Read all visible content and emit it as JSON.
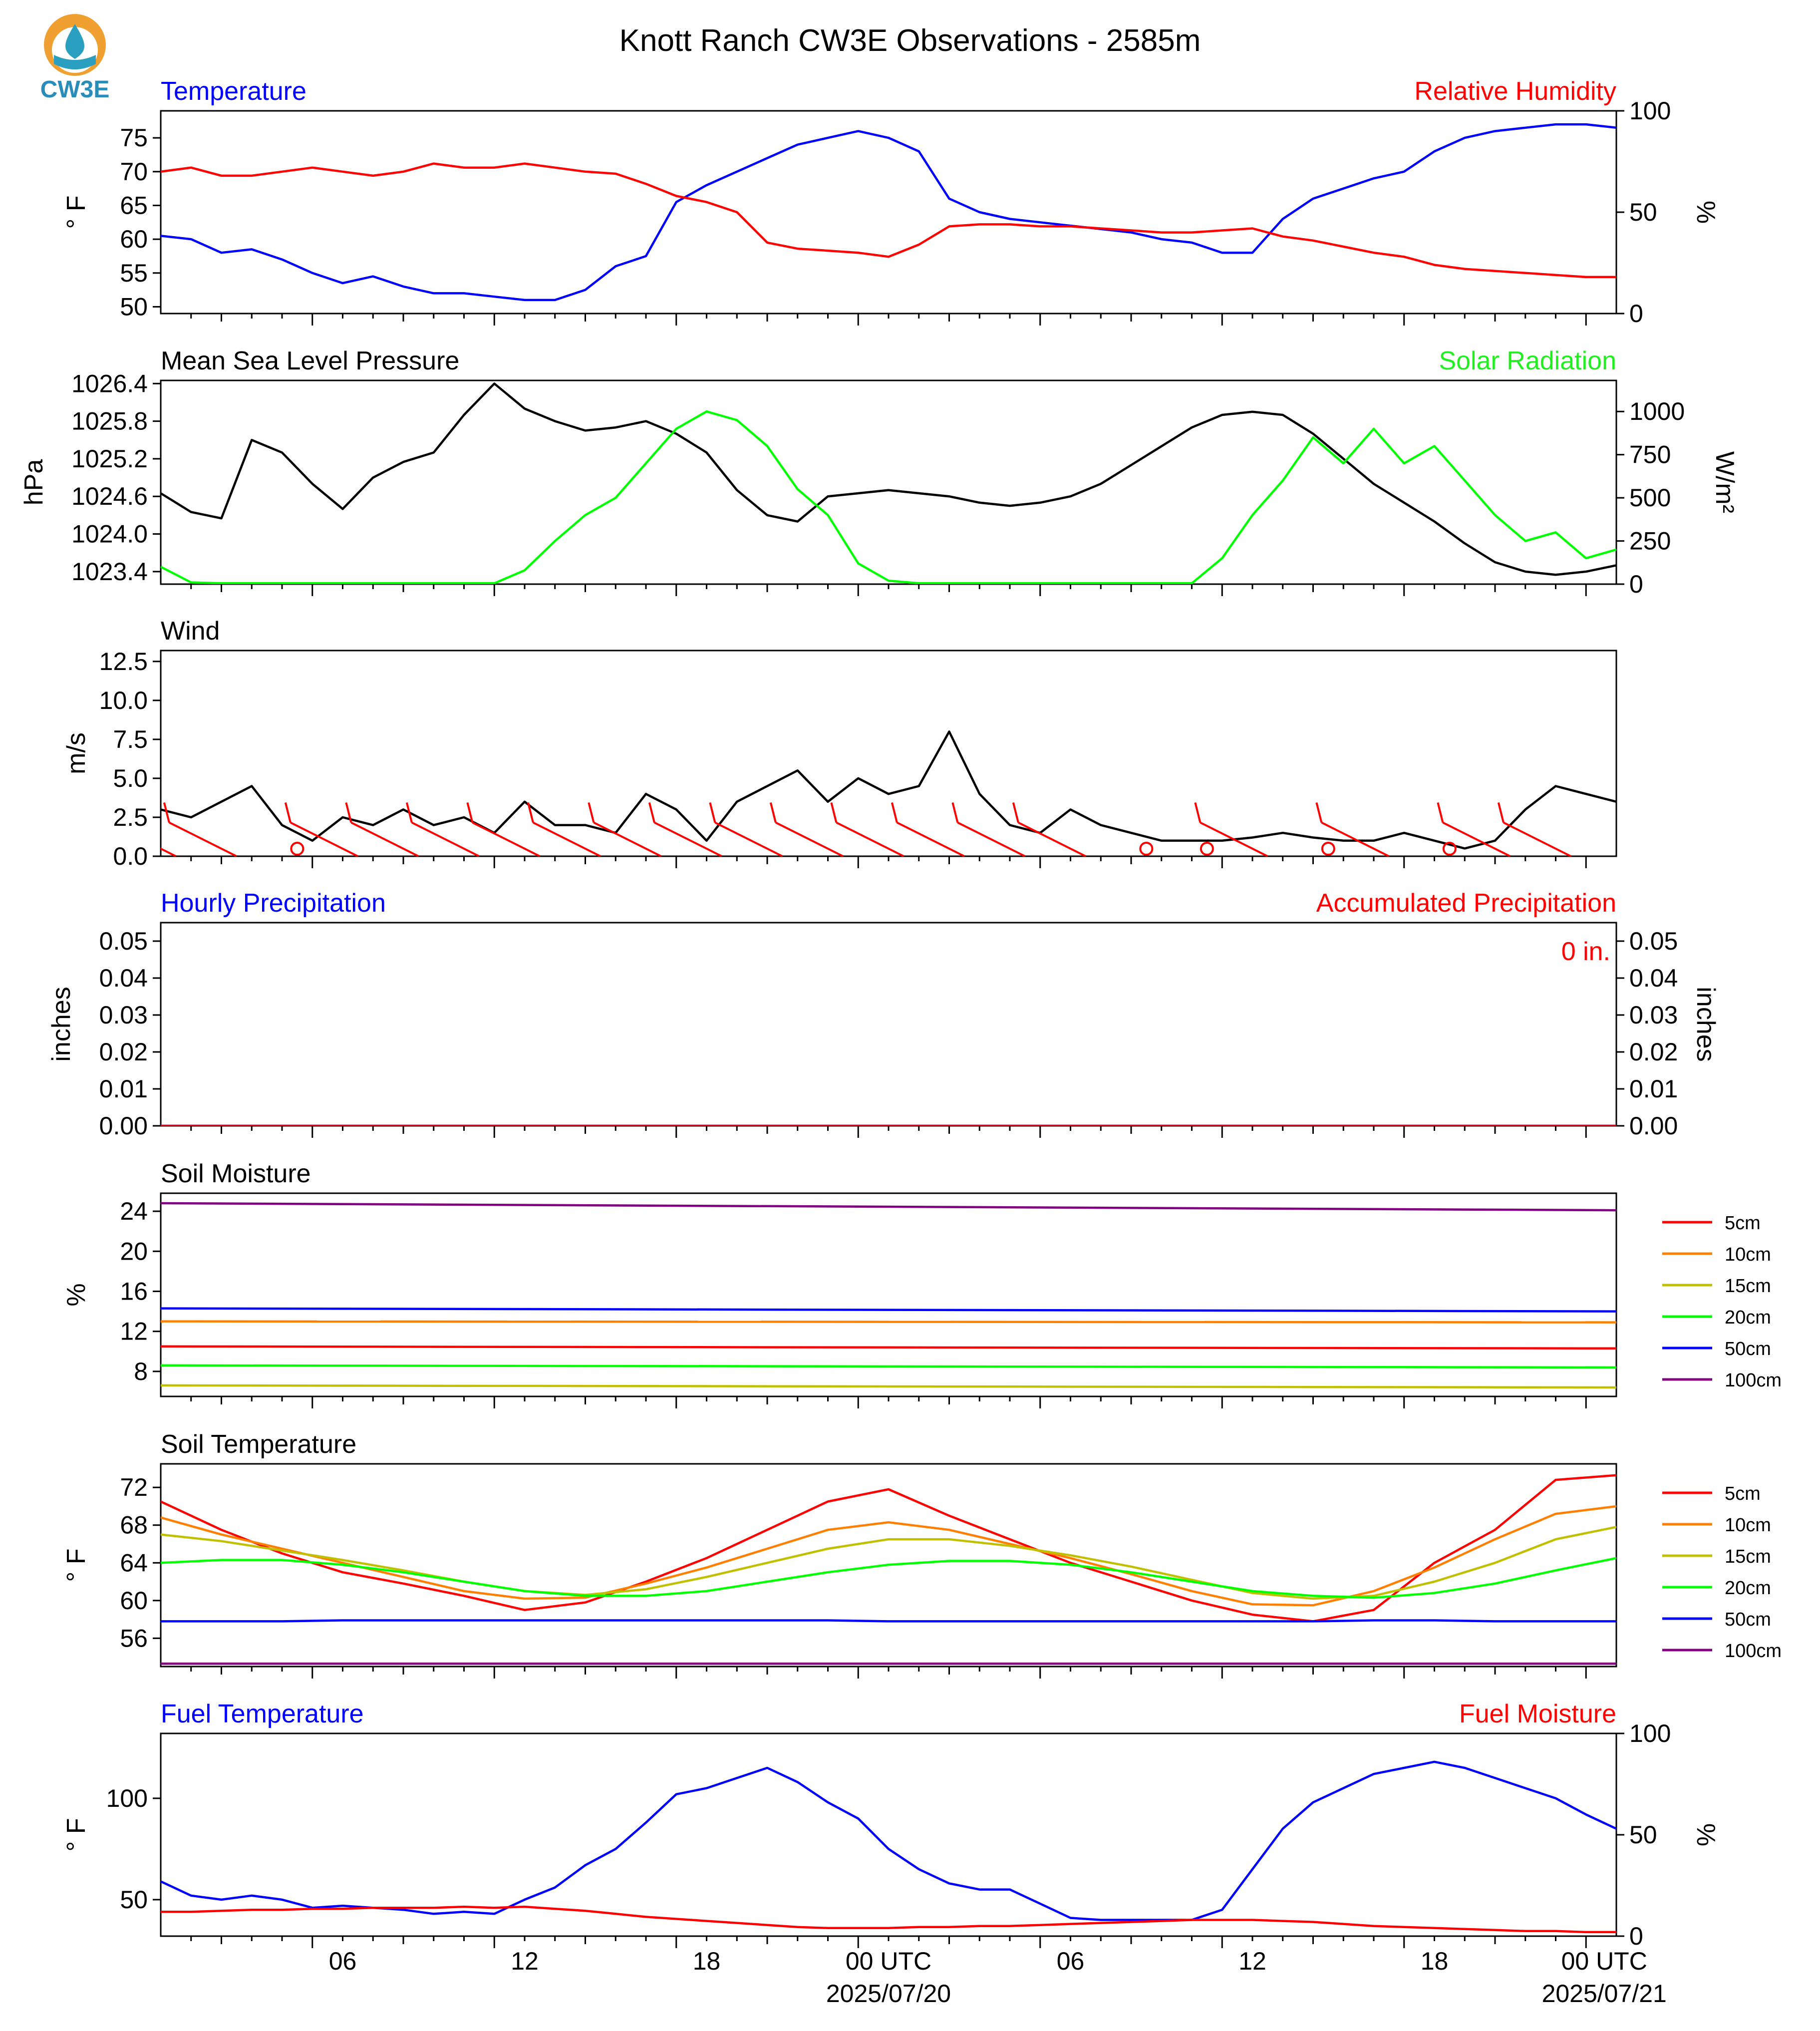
{
  "logo": {
    "text": "CW3E",
    "colors": {
      "orange": "#f0a030",
      "teal": "#2a9fc0",
      "text": "#2a8cb8"
    }
  },
  "title": "Knott Ranch CW3E Observations - 2585m",
  "x_axis": {
    "hour_ticks": [
      "06",
      "12",
      "18",
      "00 UTC",
      "06",
      "12",
      "18",
      "00 UTC"
    ],
    "date_labels": [
      "2025/07/20",
      "2025/07/21"
    ]
  },
  "chart_data": [
    {
      "id": "temp_rh",
      "type": "line",
      "title_left": "Temperature",
      "title_right": "Relative Humidity",
      "ylabel": "° F",
      "ylabel_right": "%",
      "ylim": [
        49,
        79
      ],
      "ylim_right": [
        0,
        100
      ],
      "yticks": [
        "50",
        "55",
        "60",
        "65",
        "70",
        "75"
      ],
      "yticks_right": [
        "0",
        "50",
        "100"
      ],
      "x_hours": [
        -5,
        -4,
        -3,
        -2,
        -1,
        0,
        1,
        2,
        3,
        4,
        5,
        6,
        7,
        8,
        9,
        10,
        11,
        12,
        13,
        14,
        15,
        16,
        17,
        18,
        19,
        20,
        21,
        22,
        23,
        24,
        25,
        26,
        27,
        28,
        29,
        30,
        31,
        32,
        33,
        34,
        35,
        36,
        37,
        38,
        39,
        40,
        41,
        42,
        43
      ],
      "series": [
        {
          "name": "Temperature",
          "color": "#0000ff",
          "axis": "left",
          "values": [
            60.5,
            60,
            58,
            58.5,
            57,
            55,
            53.5,
            54.5,
            53,
            52,
            52,
            51.5,
            51,
            51,
            52.5,
            56,
            57.5,
            65.5,
            68,
            70,
            72,
            74,
            75,
            76,
            75,
            73,
            66,
            64,
            63,
            62.5,
            62,
            61.5,
            61,
            60,
            59.5,
            58,
            58,
            63,
            66,
            67.5,
            69,
            70,
            73,
            75,
            76,
            76.5,
            77,
            77,
            76.5
          ]
        },
        {
          "name": "Relative Humidity",
          "color": "#ff0000",
          "axis": "right",
          "values": [
            70,
            72,
            68,
            68,
            70,
            72,
            70,
            68,
            70,
            74,
            72,
            72,
            74,
            72,
            70,
            69,
            64,
            58,
            55,
            50,
            35,
            32,
            31,
            30,
            28,
            34,
            43,
            44,
            44,
            43,
            43,
            42,
            41,
            40,
            40,
            41,
            42,
            38,
            36,
            33,
            30,
            28,
            24,
            22,
            21,
            20,
            19,
            18,
            18
          ]
        }
      ]
    },
    {
      "id": "pressure_solar",
      "type": "line",
      "title_left": "Mean Sea Level Pressure",
      "title_right": "Solar Radiation",
      "ylabel": "hPa",
      "ylabel_right": "W/m²",
      "ylim": [
        1023.2,
        1026.45
      ],
      "ylim_right": [
        0,
        1180
      ],
      "yticks": [
        "1023.4",
        "1024.0",
        "1024.6",
        "1025.2",
        "1025.8",
        "1026.4"
      ],
      "yticks_right": [
        "0",
        "250",
        "500",
        "750",
        "1000"
      ],
      "x_hours": [
        -5,
        -4,
        -3,
        -2,
        -1,
        0,
        1,
        2,
        3,
        4,
        5,
        6,
        7,
        8,
        9,
        10,
        11,
        12,
        13,
        14,
        15,
        16,
        17,
        18,
        19,
        20,
        21,
        22,
        23,
        24,
        25,
        26,
        27,
        28,
        29,
        30,
        31,
        32,
        33,
        34,
        35,
        36,
        37,
        38,
        39,
        40,
        41,
        42,
        43
      ],
      "series": [
        {
          "name": "Mean Sea Level Pressure",
          "color": "#000000",
          "axis": "left",
          "values": [
            1024.65,
            1024.35,
            1024.25,
            1025.5,
            1025.3,
            1024.8,
            1024.4,
            1024.9,
            1025.15,
            1025.3,
            1025.9,
            1026.4,
            1026.0,
            1025.8,
            1025.65,
            1025.7,
            1025.8,
            1025.6,
            1025.3,
            1024.7,
            1024.3,
            1024.2,
            1024.6,
            1024.65,
            1024.7,
            1024.65,
            1024.6,
            1024.5,
            1024.45,
            1024.5,
            1024.6,
            1024.8,
            1025.1,
            1025.4,
            1025.7,
            1025.9,
            1025.95,
            1025.9,
            1025.6,
            1025.2,
            1024.8,
            1024.5,
            1024.2,
            1023.85,
            1023.55,
            1023.4,
            1023.35,
            1023.4,
            1023.5
          ]
        },
        {
          "name": "Solar Radiation",
          "color": "#00ff00",
          "axis": "right",
          "values": [
            100,
            10,
            5,
            5,
            5,
            5,
            5,
            5,
            5,
            5,
            5,
            5,
            80,
            250,
            400,
            500,
            700,
            900,
            1000,
            950,
            800,
            550,
            400,
            120,
            20,
            5,
            5,
            5,
            5,
            5,
            5,
            5,
            5,
            5,
            5,
            150,
            400,
            600,
            850,
            700,
            900,
            700,
            800,
            600,
            400,
            250,
            300,
            150,
            200
          ]
        }
      ]
    },
    {
      "id": "wind",
      "type": "line",
      "title_left": "Wind",
      "ylabel": "m/s",
      "ylim": [
        0,
        13.2
      ],
      "yticks": [
        "0.0",
        "2.5",
        "5.0",
        "7.5",
        "10.0",
        "12.5"
      ],
      "x_hours": [
        -5,
        -4,
        -3,
        -2,
        -1,
        0,
        1,
        2,
        3,
        4,
        5,
        6,
        7,
        8,
        9,
        10,
        11,
        12,
        13,
        14,
        15,
        16,
        17,
        18,
        19,
        20,
        21,
        22,
        23,
        24,
        25,
        26,
        27,
        28,
        29,
        30,
        31,
        32,
        33,
        34,
        35,
        36,
        37,
        38,
        39,
        40,
        41,
        42,
        43
      ],
      "series": [
        {
          "name": "Wind speed",
          "color": "#000000",
          "values": [
            3,
            2.5,
            3.5,
            4.5,
            2,
            1,
            2.5,
            2,
            3,
            2,
            2.5,
            1.5,
            3.5,
            2,
            2,
            1.5,
            4,
            3,
            1,
            3.5,
            4.5,
            5.5,
            3.5,
            5,
            4,
            4.5,
            8,
            4,
            2,
            1.5,
            3,
            2,
            1.5,
            1,
            1,
            1,
            1.2,
            1.5,
            1.2,
            1,
            1,
            1.5,
            1,
            0.5,
            1,
            3,
            4.5,
            4,
            3.5
          ]
        }
      ],
      "barbs": {
        "color": "#ff0000",
        "description": "wind barbs along the bottom of the panel"
      }
    },
    {
      "id": "precip",
      "type": "line",
      "title_left": "Hourly Precipitation",
      "title_right": "Accumulated Precipitation",
      "ylabel": "inches",
      "ylabel_right": "inches",
      "ylim": [
        0,
        0.055
      ],
      "ylim_right": [
        0,
        0.055
      ],
      "yticks": [
        "0.00",
        "0.01",
        "0.02",
        "0.03",
        "0.04",
        "0.05"
      ],
      "yticks_right": [
        "0.00",
        "0.01",
        "0.02",
        "0.03",
        "0.04",
        "0.05"
      ],
      "annotation": "0 in.",
      "series": [
        {
          "name": "Hourly Precipitation",
          "color": "#0000ff",
          "values": [
            0,
            0
          ]
        },
        {
          "name": "Accumulated Precipitation",
          "color": "#ff0000",
          "values": [
            0,
            0
          ]
        }
      ]
    },
    {
      "id": "soil_moisture",
      "type": "line",
      "title_left": "Soil Moisture",
      "ylabel": "%",
      "ylim": [
        5.5,
        25.8
      ],
      "yticks": [
        "8",
        "12",
        "16",
        "20",
        "24"
      ],
      "x_hours": [
        -5,
        43
      ],
      "legend": [
        "5cm",
        "10cm",
        "15cm",
        "20cm",
        "50cm",
        "100cm"
      ],
      "series": [
        {
          "name": "5cm",
          "color": "#ff0000",
          "values": [
            10.5,
            10.3
          ]
        },
        {
          "name": "10cm",
          "color": "#ff8000",
          "values": [
            13.0,
            12.9
          ]
        },
        {
          "name": "15cm",
          "color": "#c0c000",
          "values": [
            6.6,
            6.4
          ]
        },
        {
          "name": "20cm",
          "color": "#00ff00",
          "values": [
            8.6,
            8.4
          ]
        },
        {
          "name": "50cm",
          "color": "#0000ff",
          "values": [
            14.3,
            14.0
          ]
        },
        {
          "name": "100cm",
          "color": "#800080",
          "values": [
            24.8,
            24.1
          ]
        }
      ]
    },
    {
      "id": "soil_temp",
      "type": "line",
      "title_left": "Soil Temperature",
      "ylabel": "° F",
      "ylim": [
        53,
        74.5
      ],
      "yticks": [
        "56",
        "60",
        "64",
        "68",
        "72"
      ],
      "x_hours": [
        -5,
        -3,
        -1,
        1,
        3,
        5,
        7,
        9,
        11,
        13,
        15,
        17,
        19,
        21,
        23,
        25,
        27,
        29,
        31,
        33,
        35,
        37,
        39,
        41,
        43
      ],
      "legend": [
        "5cm",
        "10cm",
        "15cm",
        "20cm",
        "50cm",
        "100cm"
      ],
      "series": [
        {
          "name": "5cm",
          "color": "#ff0000",
          "values": [
            70.5,
            67.5,
            65,
            63,
            61.8,
            60.5,
            59,
            59.8,
            62,
            64.5,
            67.5,
            70.5,
            71.8,
            69,
            66.5,
            64,
            62,
            60,
            58.5,
            57.8,
            59,
            64,
            67.5,
            72.8,
            73.3
          ]
        },
        {
          "name": "10cm",
          "color": "#ff8000",
          "values": [
            68.8,
            67,
            65.5,
            64,
            62.5,
            61,
            60.2,
            60.3,
            61.8,
            63.5,
            65.5,
            67.5,
            68.3,
            67.5,
            66,
            64.5,
            62.8,
            61,
            59.6,
            59.5,
            61,
            63.5,
            66.5,
            69.2,
            70
          ]
        },
        {
          "name": "15cm",
          "color": "#c0c000",
          "values": [
            67,
            66.3,
            65.3,
            64.3,
            63.2,
            62,
            61,
            60.6,
            61.2,
            62.5,
            64,
            65.5,
            66.5,
            66.5,
            65.8,
            64.8,
            63.6,
            62.2,
            60.8,
            60.2,
            60.5,
            62,
            64,
            66.5,
            67.8
          ]
        },
        {
          "name": "20cm",
          "color": "#00ff00",
          "values": [
            64,
            64.3,
            64.3,
            63.8,
            63,
            62,
            61,
            60.5,
            60.5,
            61,
            62,
            63,
            63.8,
            64.2,
            64.2,
            63.8,
            63,
            62,
            61,
            60.5,
            60.3,
            60.8,
            61.8,
            63.2,
            64.5
          ]
        },
        {
          "name": "50cm",
          "color": "#0000ff",
          "values": [
            57.8,
            57.8,
            57.8,
            57.9,
            57.9,
            57.9,
            57.9,
            57.9,
            57.9,
            57.9,
            57.9,
            57.9,
            57.8,
            57.8,
            57.8,
            57.8,
            57.8,
            57.8,
            57.8,
            57.8,
            57.9,
            57.9,
            57.8,
            57.8,
            57.8
          ]
        },
        {
          "name": "100cm",
          "color": "#800080",
          "values": [
            53.3,
            53.3,
            53.3,
            53.3,
            53.3,
            53.3,
            53.3,
            53.3,
            53.3,
            53.3,
            53.3,
            53.3,
            53.3,
            53.3,
            53.3,
            53.3,
            53.3,
            53.3,
            53.3,
            53.3,
            53.3,
            53.3,
            53.3,
            53.3,
            53.3
          ]
        }
      ]
    },
    {
      "id": "fuel",
      "type": "line",
      "title_left": "Fuel Temperature",
      "title_right": "Fuel Moisture",
      "ylabel": "° F",
      "ylabel_right": "%",
      "ylim": [
        32,
        132
      ],
      "ylim_right": [
        0,
        100
      ],
      "yticks": [
        "50",
        "100"
      ],
      "yticks_right": [
        "0",
        "50",
        "100"
      ],
      "x_hours": [
        -5,
        -4,
        -3,
        -2,
        -1,
        0,
        1,
        2,
        3,
        4,
        5,
        6,
        7,
        8,
        9,
        10,
        11,
        12,
        13,
        14,
        15,
        16,
        17,
        18,
        19,
        20,
        21,
        22,
        23,
        24,
        25,
        26,
        27,
        28,
        29,
        30,
        31,
        32,
        33,
        34,
        35,
        36,
        37,
        38,
        39,
        40,
        41,
        42,
        43
      ],
      "series": [
        {
          "name": "Fuel Temperature",
          "color": "#0000ff",
          "axis": "left",
          "values": [
            59,
            52,
            50,
            52,
            50,
            46,
            47,
            46,
            45,
            43,
            44,
            43,
            50,
            56,
            67,
            75,
            88,
            102,
            105,
            110,
            115,
            108,
            98,
            90,
            75,
            65,
            58,
            55,
            55,
            48,
            41,
            40,
            40,
            40,
            40,
            45,
            65,
            85,
            98,
            105,
            112,
            115,
            118,
            115,
            110,
            105,
            100,
            92,
            85
          ]
        },
        {
          "name": "Fuel Moisture",
          "color": "#ff0000",
          "axis": "right",
          "values": [
            12,
            12,
            12.5,
            13,
            13,
            13.5,
            13.5,
            14,
            14,
            14,
            14.5,
            14,
            14.5,
            13.5,
            12.5,
            11,
            9.5,
            8.5,
            7.5,
            6.5,
            5.5,
            4.5,
            4,
            4,
            4,
            4.5,
            4.5,
            5,
            5,
            5.5,
            6,
            6.5,
            7,
            7.5,
            8,
            8,
            8,
            7.5,
            7,
            6,
            5,
            4.5,
            4,
            3.5,
            3,
            2.5,
            2.5,
            2,
            2
          ]
        }
      ]
    }
  ]
}
